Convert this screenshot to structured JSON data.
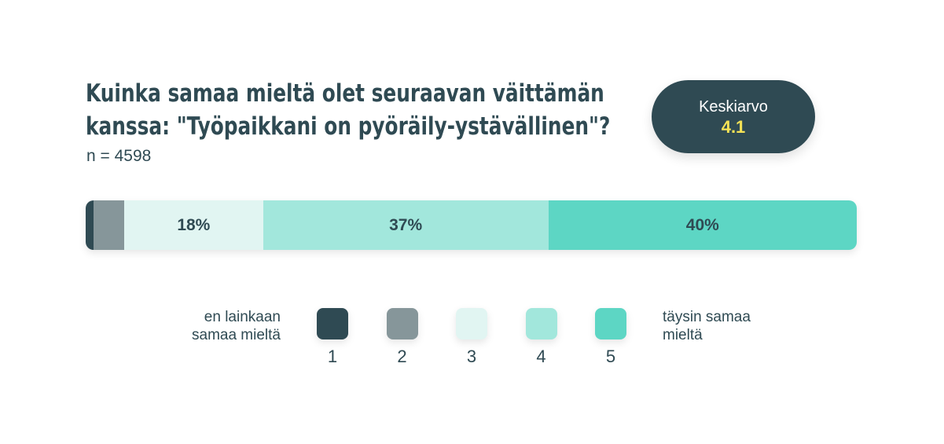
{
  "title_lines": [
    "Kuinka samaa mieltä olet seuraavan väittämän",
    "kanssa: \"Työpaikkani on pyöräily-ystävällinen\"?"
  ],
  "sample_label": "n = 4598",
  "mean": {
    "label": "Keskiarvo",
    "value": "4.1"
  },
  "colors": {
    "1": "#2f4a53",
    "2": "#86969a",
    "3": "#e1f5f2",
    "4": "#a2e7dc",
    "5": "#5dd6c4",
    "mean_value": "#f5e356"
  },
  "chart_data": {
    "type": "bar",
    "orientation": "horizontal-stacked",
    "categories": [
      "1",
      "2",
      "3",
      "4",
      "5"
    ],
    "values": [
      1,
      4,
      18,
      37,
      40
    ],
    "value_labels": [
      "",
      "",
      "18%",
      "37%",
      "40%"
    ],
    "unit": "%"
  },
  "legend": {
    "left_text": [
      "en lainkaan",
      "samaa mieltä"
    ],
    "right_text": [
      "täysin samaa",
      "mieltä"
    ],
    "numbers": [
      "1",
      "2",
      "3",
      "4",
      "5"
    ]
  }
}
